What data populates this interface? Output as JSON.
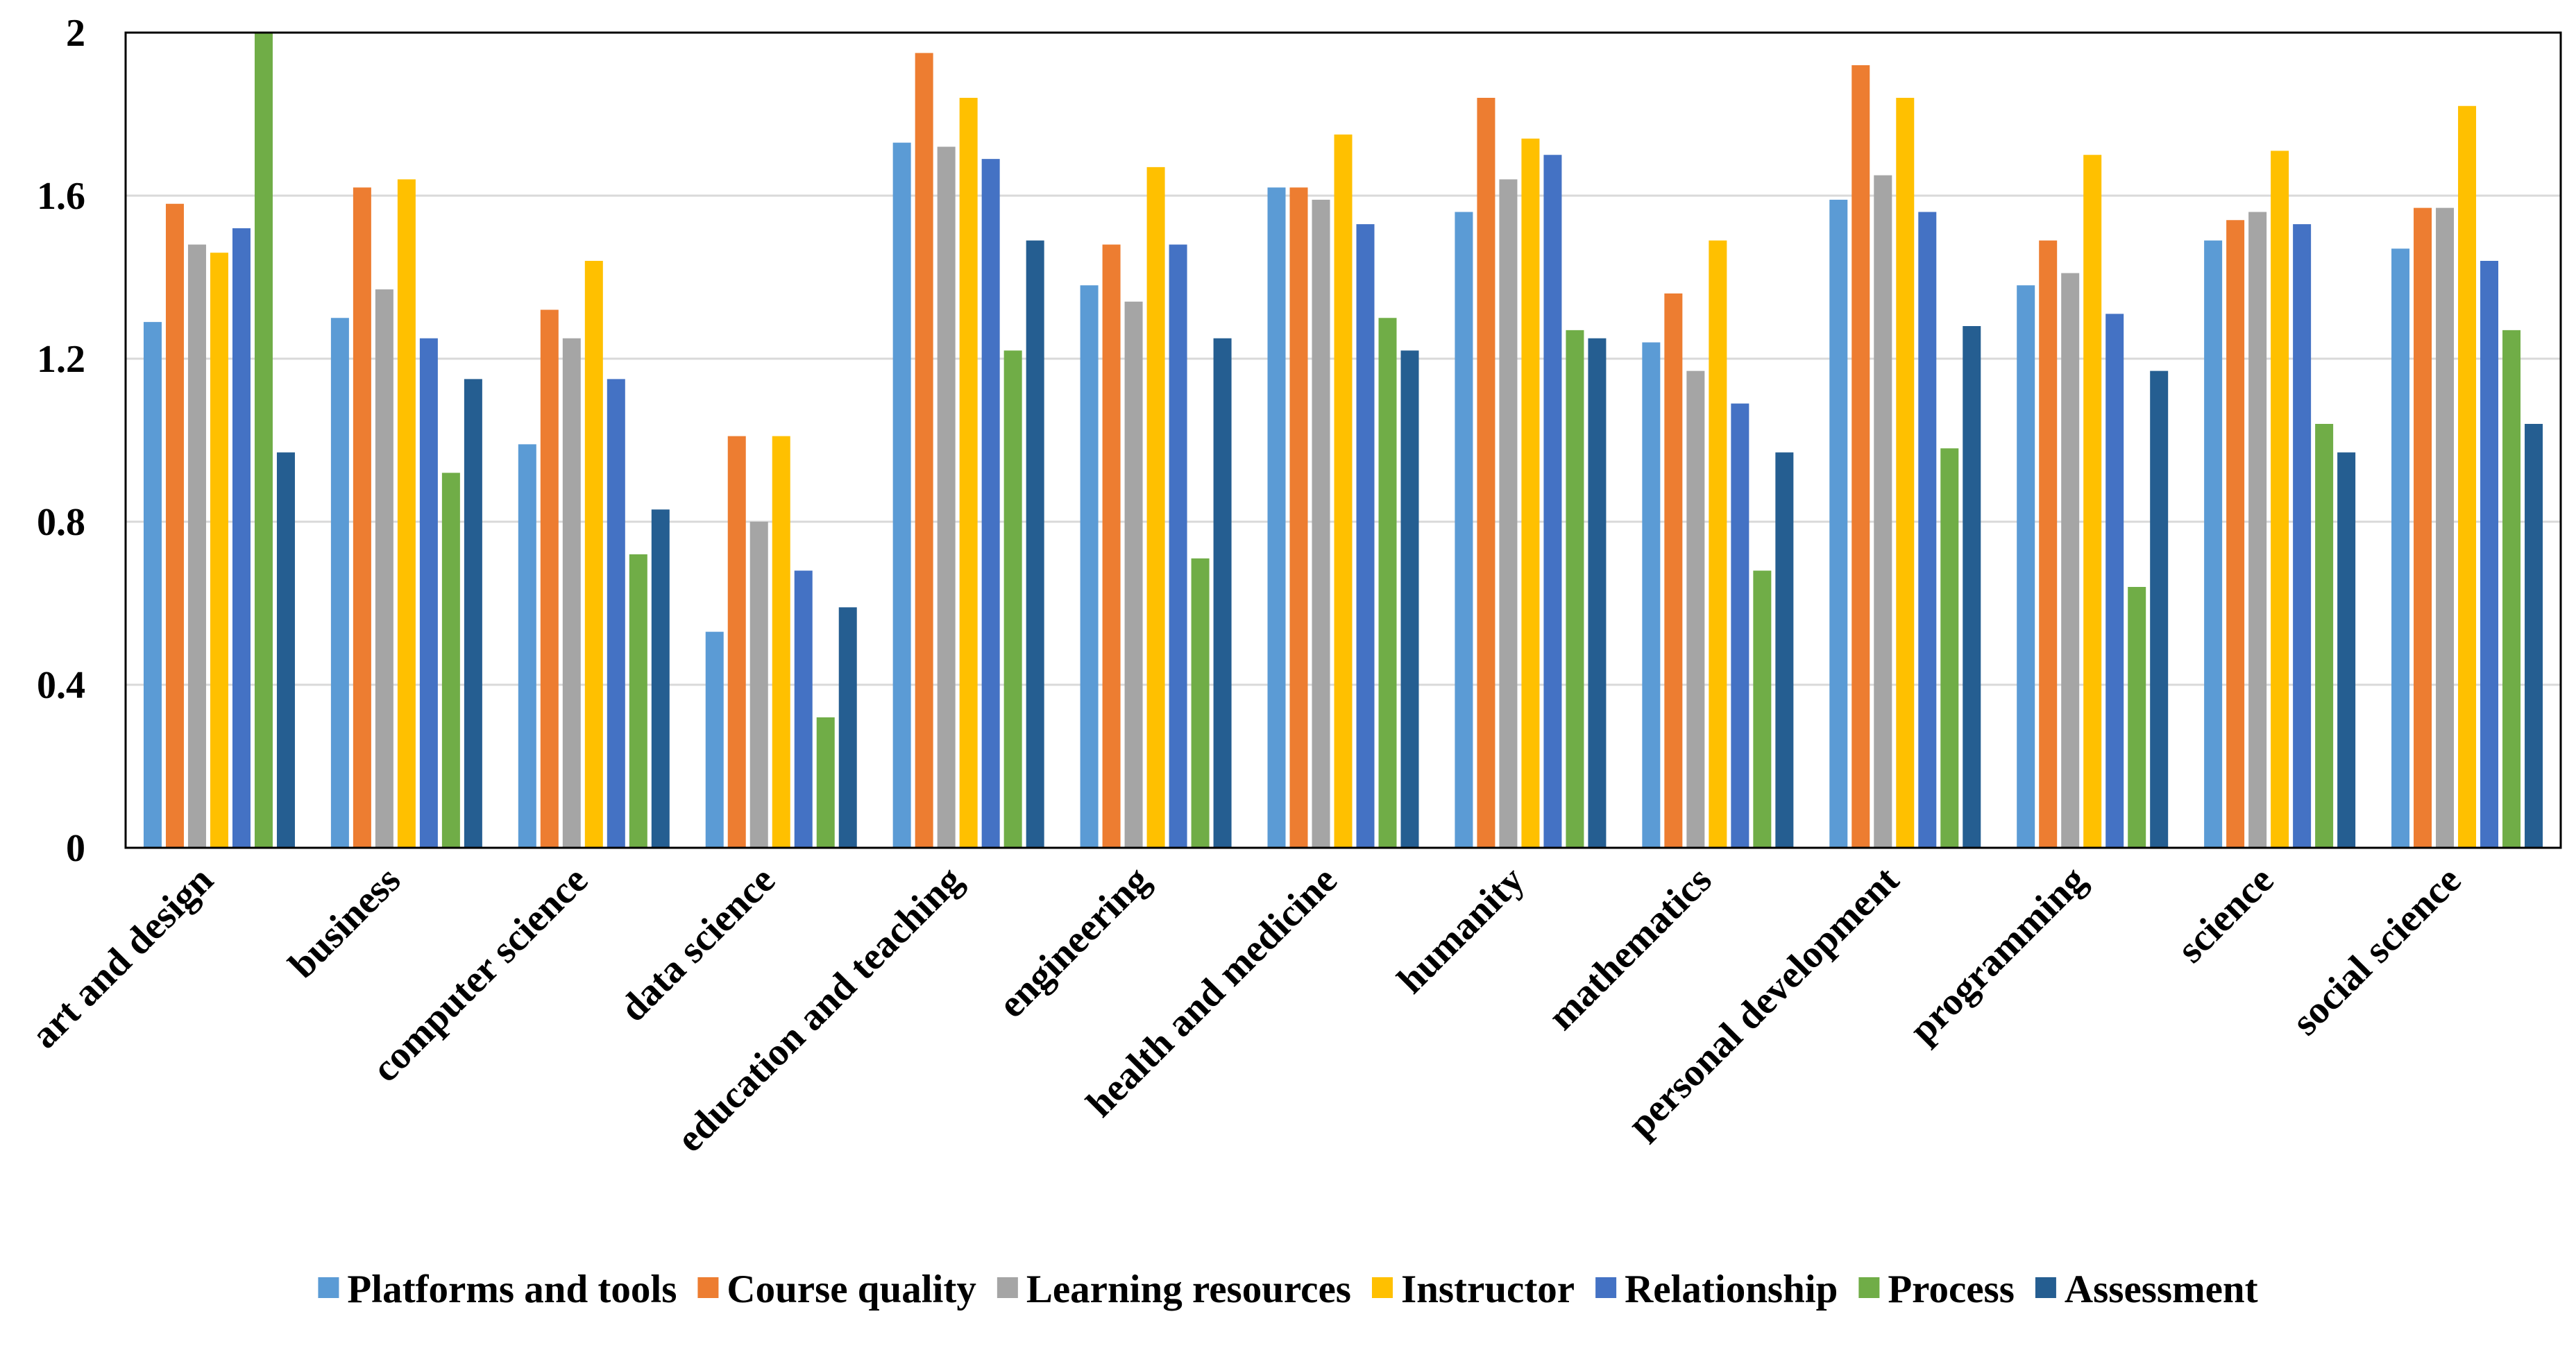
{
  "chart_data": {
    "type": "bar",
    "title": "",
    "xlabel": "",
    "ylabel": "",
    "ylim": [
      0,
      2
    ],
    "yticks": [
      "0",
      "0.4",
      "0.8",
      "1.2",
      "1.6",
      "2"
    ],
    "grid": true,
    "legend_position": "bottom",
    "categories": [
      "art and design",
      "business",
      "computer science",
      "data science",
      "education and teaching",
      "engineering",
      "health and medicine",
      "humanity",
      "mathematics",
      "personal development",
      "programming",
      "science",
      "social science"
    ],
    "series": [
      {
        "name": "Platforms and tools",
        "color": "#5B9BD5",
        "values": [
          1.29,
          1.3,
          0.99,
          0.53,
          1.73,
          1.38,
          1.62,
          1.56,
          1.24,
          1.59,
          1.38,
          1.49,
          1.47
        ]
      },
      {
        "name": "Course quality",
        "color": "#ED7D31",
        "values": [
          1.58,
          1.62,
          1.32,
          1.01,
          1.95,
          1.48,
          1.62,
          1.84,
          1.36,
          1.92,
          1.49,
          1.54,
          1.57
        ]
      },
      {
        "name": "Learning resources",
        "color": "#A5A5A5",
        "values": [
          1.48,
          1.37,
          1.25,
          0.8,
          1.72,
          1.34,
          1.59,
          1.64,
          1.17,
          1.65,
          1.41,
          1.56,
          1.57
        ]
      },
      {
        "name": "Instructor",
        "color": "#FFC000",
        "values": [
          1.46,
          1.64,
          1.44,
          1.01,
          1.84,
          1.67,
          1.75,
          1.74,
          1.49,
          1.84,
          1.7,
          1.71,
          1.82
        ]
      },
      {
        "name": "Relationship",
        "color": "#4472C4",
        "values": [
          1.52,
          1.25,
          1.15,
          0.68,
          1.69,
          1.48,
          1.53,
          1.7,
          1.09,
          1.56,
          1.31,
          1.53,
          1.44
        ]
      },
      {
        "name": "Process",
        "color": "#70AD47",
        "values": [
          2.0,
          0.92,
          0.72,
          0.32,
          1.22,
          0.71,
          1.3,
          1.27,
          0.68,
          0.98,
          0.64,
          1.04,
          1.27
        ]
      },
      {
        "name": "Assessment",
        "color": "#255E91",
        "values": [
          0.97,
          1.15,
          0.83,
          0.59,
          1.49,
          1.25,
          1.22,
          1.25,
          0.97,
          1.28,
          1.17,
          0.97,
          1.04
        ]
      }
    ]
  }
}
